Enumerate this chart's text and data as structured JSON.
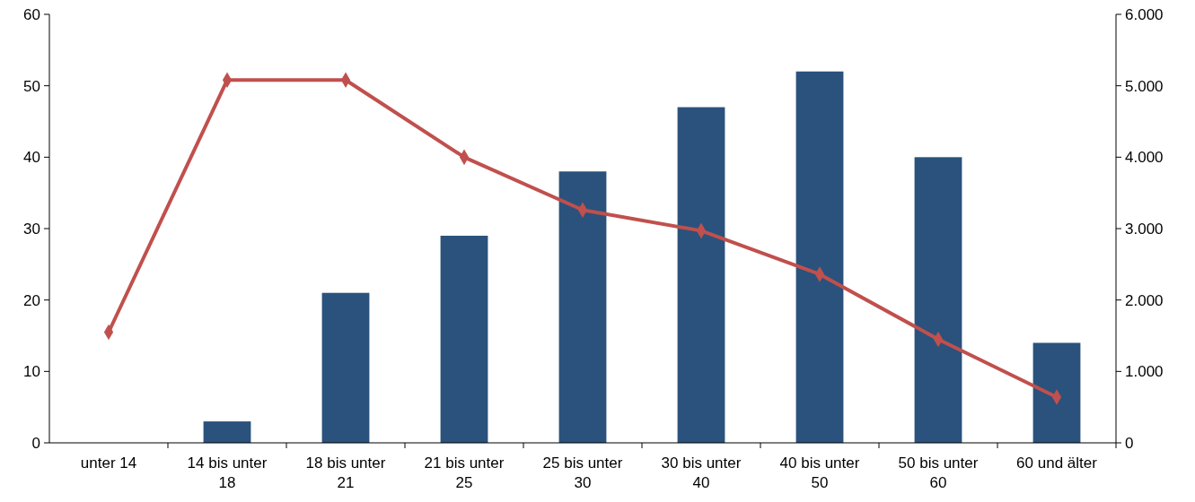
{
  "chart_data": {
    "type": "bar",
    "categories": [
      "unter 14",
      "14 bis unter 18",
      "18 bis unter 21",
      "21 bis unter 25",
      "25 bis unter 30",
      "30 bis unter 40",
      "40 bis unter 50",
      "50 bis unter 60",
      "60 und älter"
    ],
    "series": [
      {
        "color": "#2a527c",
        "values": [
          0,
          3,
          21,
          29,
          38,
          47,
          52,
          40,
          14
        ]
      },
      {
        "type": "line",
        "axis": "y2",
        "color": "#c0504d",
        "marker": "diamond",
        "values": [
          1550,
          5080,
          5080,
          4000,
          3260,
          2970,
          2360,
          1450,
          640
        ]
      }
    ],
    "ylim": [
      0,
      60
    ],
    "yticks": [
      0,
      10,
      20,
      30,
      40,
      50,
      60
    ],
    "y2lim": [
      0,
      6000
    ],
    "y2ticks": [
      {
        "value": 0,
        "label": "0"
      },
      {
        "value": 1000,
        "label": "1.000"
      },
      {
        "value": 2000,
        "label": "2.000"
      },
      {
        "value": 3000,
        "label": "3.000"
      },
      {
        "value": 4000,
        "label": "4.000"
      },
      {
        "value": 5000,
        "label": "5.000"
      },
      {
        "value": 6000,
        "label": "6.000"
      }
    ],
    "grid": false
  }
}
